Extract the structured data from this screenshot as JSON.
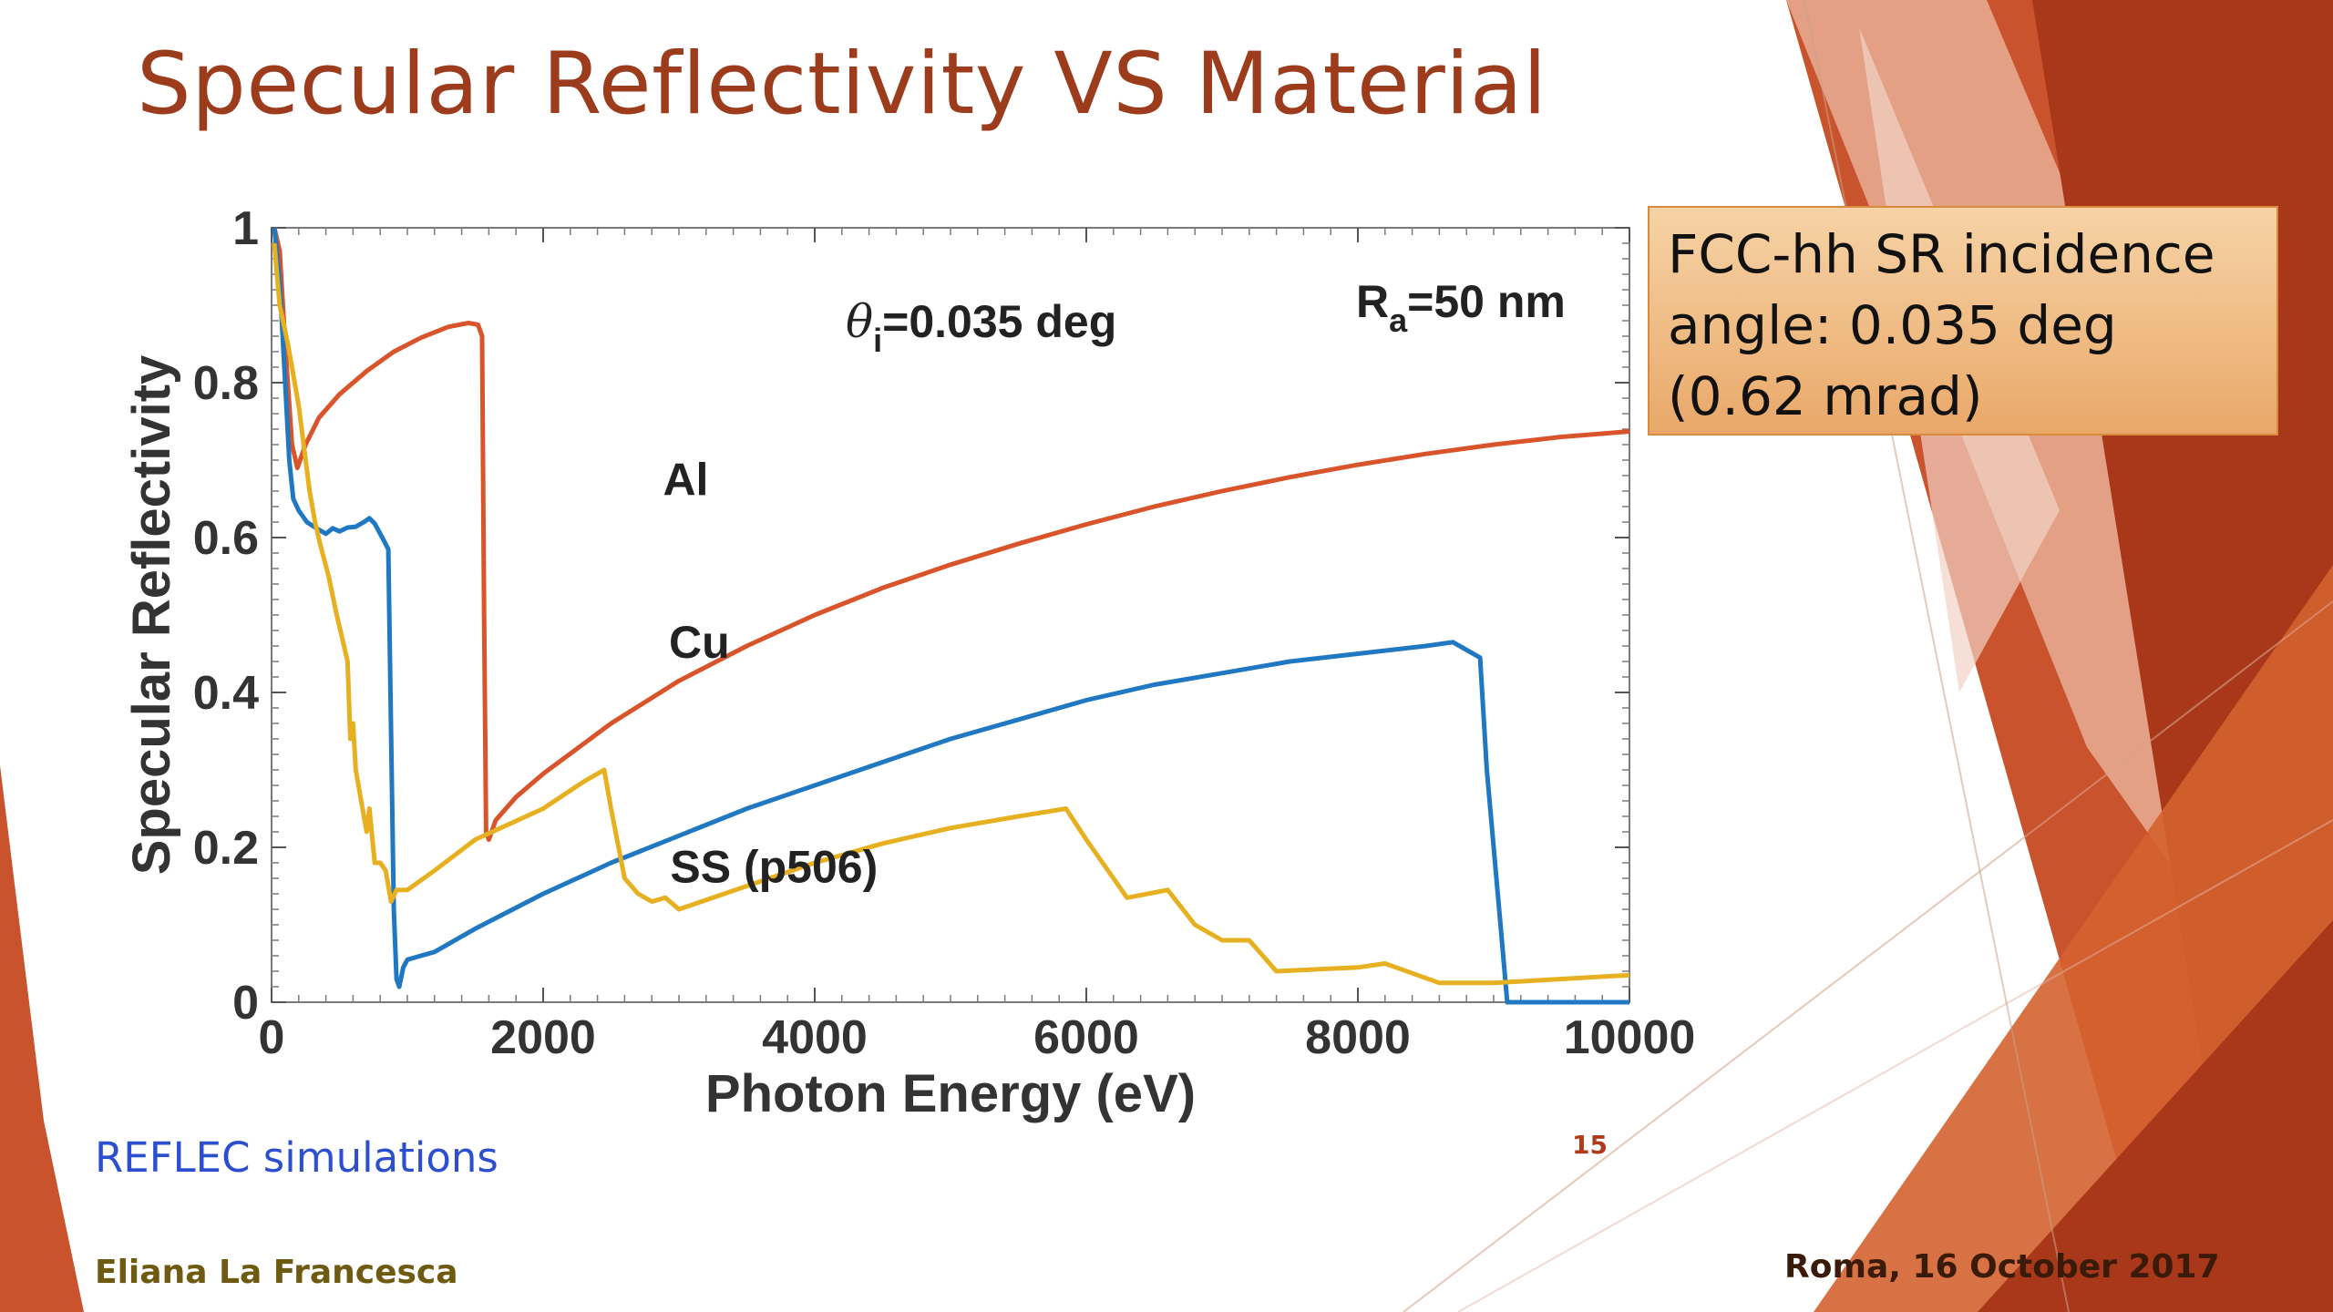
{
  "slide": {
    "title": "Specular Reflectivity VS Material",
    "callout": [
      "FCC-hh SR incidence",
      "angle: 0.035 deg",
      "(0.62 mrad)"
    ],
    "source_note": "REFLEC simulations",
    "page_number": "15",
    "author": "Eliana La Francesca",
    "footer_date": "Roma, 16 October 2017",
    "colors": {
      "title": "#9c3c1c",
      "deco_dark": "#a9381a",
      "deco_mid": "#c9532c",
      "deco_light": "#e6a98f",
      "callout_fill": "#f0bb82",
      "source_note": "#2b4fcf"
    }
  },
  "chart_data": {
    "type": "line",
    "xlabel": "Photon Energy (eV)",
    "ylabel": "Specular Reflectivity",
    "xlim": [
      0,
      10000
    ],
    "ylim": [
      0,
      1
    ],
    "xticks": [
      0,
      2000,
      4000,
      6000,
      8000,
      10000
    ],
    "yticks": [
      0,
      0.2,
      0.4,
      0.6,
      0.8,
      1
    ],
    "xtick_labels": [
      "0",
      "2000",
      "4000",
      "6000",
      "8000",
      "10000"
    ],
    "ytick_labels": [
      "0",
      "0.2",
      "0.4",
      "0.6",
      "0.8",
      "1"
    ],
    "annotations": {
      "theta": {
        "symbol": "θ",
        "sub": "i",
        "rest": "=0.035 deg"
      },
      "roughness": {
        "symbol": "R",
        "sub": "a",
        "rest": "=50 nm"
      }
    },
    "series": [
      {
        "name": "Al",
        "color": "#d9542a",
        "points": [
          [
            20,
            1.0
          ],
          [
            60,
            0.97
          ],
          [
            100,
            0.85
          ],
          [
            150,
            0.72
          ],
          [
            190,
            0.69
          ],
          [
            250,
            0.72
          ],
          [
            350,
            0.755
          ],
          [
            500,
            0.785
          ],
          [
            700,
            0.815
          ],
          [
            900,
            0.84
          ],
          [
            1100,
            0.858
          ],
          [
            1300,
            0.872
          ],
          [
            1450,
            0.877
          ],
          [
            1520,
            0.875
          ],
          [
            1550,
            0.86
          ],
          [
            1565,
            0.5
          ],
          [
            1580,
            0.22
          ],
          [
            1600,
            0.21
          ],
          [
            1650,
            0.235
          ],
          [
            1800,
            0.265
          ],
          [
            2000,
            0.295
          ],
          [
            2500,
            0.36
          ],
          [
            3000,
            0.415
          ],
          [
            3500,
            0.46
          ],
          [
            4000,
            0.5
          ],
          [
            4500,
            0.535
          ],
          [
            5000,
            0.565
          ],
          [
            5500,
            0.592
          ],
          [
            6000,
            0.617
          ],
          [
            6500,
            0.64
          ],
          [
            7000,
            0.66
          ],
          [
            7500,
            0.678
          ],
          [
            8000,
            0.694
          ],
          [
            8500,
            0.708
          ],
          [
            9000,
            0.72
          ],
          [
            9500,
            0.73
          ],
          [
            10000,
            0.737
          ]
        ]
      },
      {
        "name": "Cu",
        "color": "#1f78c1",
        "points": [
          [
            20,
            1.0
          ],
          [
            60,
            0.93
          ],
          [
            100,
            0.8
          ],
          [
            130,
            0.7
          ],
          [
            160,
            0.65
          ],
          [
            200,
            0.635
          ],
          [
            260,
            0.62
          ],
          [
            330,
            0.612
          ],
          [
            400,
            0.605
          ],
          [
            450,
            0.612
          ],
          [
            500,
            0.608
          ],
          [
            560,
            0.613
          ],
          [
            620,
            0.614
          ],
          [
            680,
            0.62
          ],
          [
            720,
            0.625
          ],
          [
            760,
            0.618
          ],
          [
            800,
            0.605
          ],
          [
            830,
            0.595
          ],
          [
            860,
            0.585
          ],
          [
            880,
            0.35
          ],
          [
            900,
            0.12
          ],
          [
            920,
            0.03
          ],
          [
            940,
            0.02
          ],
          [
            970,
            0.045
          ],
          [
            1000,
            0.055
          ],
          [
            1100,
            0.06
          ],
          [
            1200,
            0.065
          ],
          [
            1300,
            0.075
          ],
          [
            1500,
            0.095
          ],
          [
            2000,
            0.14
          ],
          [
            2500,
            0.18
          ],
          [
            3000,
            0.215
          ],
          [
            3500,
            0.25
          ],
          [
            4000,
            0.28
          ],
          [
            4500,
            0.31
          ],
          [
            5000,
            0.34
          ],
          [
            5500,
            0.365
          ],
          [
            6000,
            0.39
          ],
          [
            6500,
            0.41
          ],
          [
            7000,
            0.425
          ],
          [
            7500,
            0.44
          ],
          [
            8000,
            0.45
          ],
          [
            8500,
            0.46
          ],
          [
            8700,
            0.465
          ],
          [
            8900,
            0.445
          ],
          [
            8950,
            0.3
          ],
          [
            9050,
            0.1
          ],
          [
            9100,
            0.0
          ],
          [
            9500,
            0.0
          ],
          [
            10000,
            0.0
          ]
        ]
      },
      {
        "name": "SS (p506)",
        "color": "#e6b020",
        "points": [
          [
            20,
            0.98
          ],
          [
            60,
            0.9
          ],
          [
            120,
            0.85
          ],
          [
            200,
            0.77
          ],
          [
            280,
            0.66
          ],
          [
            320,
            0.62
          ],
          [
            360,
            0.59
          ],
          [
            420,
            0.55
          ],
          [
            480,
            0.5
          ],
          [
            520,
            0.47
          ],
          [
            560,
            0.44
          ],
          [
            580,
            0.34
          ],
          [
            600,
            0.36
          ],
          [
            620,
            0.3
          ],
          [
            660,
            0.26
          ],
          [
            700,
            0.22
          ],
          [
            720,
            0.25
          ],
          [
            760,
            0.18
          ],
          [
            800,
            0.18
          ],
          [
            840,
            0.17
          ],
          [
            880,
            0.13
          ],
          [
            920,
            0.145
          ],
          [
            1000,
            0.145
          ],
          [
            1200,
            0.17
          ],
          [
            1500,
            0.21
          ],
          [
            2000,
            0.25
          ],
          [
            2300,
            0.285
          ],
          [
            2450,
            0.3
          ],
          [
            2500,
            0.25
          ],
          [
            2600,
            0.16
          ],
          [
            2700,
            0.14
          ],
          [
            2800,
            0.13
          ],
          [
            2900,
            0.135
          ],
          [
            3000,
            0.12
          ],
          [
            3500,
            0.15
          ],
          [
            4000,
            0.18
          ],
          [
            4500,
            0.205
          ],
          [
            5000,
            0.225
          ],
          [
            5500,
            0.24
          ],
          [
            5850,
            0.25
          ],
          [
            6000,
            0.21
          ],
          [
            6200,
            0.16
          ],
          [
            6300,
            0.135
          ],
          [
            6600,
            0.145
          ],
          [
            6800,
            0.1
          ],
          [
            7000,
            0.08
          ],
          [
            7200,
            0.08
          ],
          [
            7400,
            0.04
          ],
          [
            8000,
            0.045
          ],
          [
            8200,
            0.05
          ],
          [
            8600,
            0.025
          ],
          [
            9000,
            0.025
          ],
          [
            9500,
            0.03
          ],
          [
            10000,
            0.035
          ]
        ]
      }
    ],
    "series_labels": [
      {
        "series": "Al",
        "x": 3050,
        "y": 0.655
      },
      {
        "series": "Cu",
        "x": 3150,
        "y": 0.445
      },
      {
        "series": "SS (p506)",
        "x": 3700,
        "y": 0.155
      }
    ],
    "grid": false,
    "legend": "none"
  }
}
